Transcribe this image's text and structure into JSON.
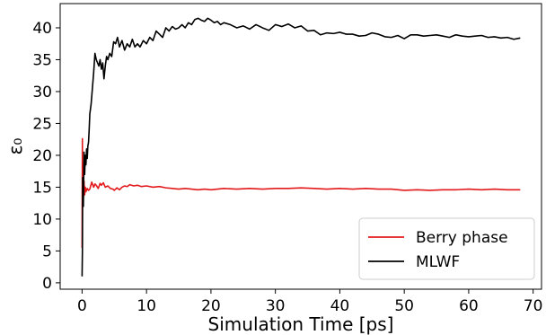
{
  "chart_data": {
    "type": "line",
    "xlabel": "Simulation Time [ps]",
    "ylabel": "ε₀",
    "xlim": [
      -3.4,
      71.3
    ],
    "ylim": [
      -1.0,
      43.8
    ],
    "xticks": [
      0,
      10,
      20,
      30,
      40,
      50,
      60,
      70
    ],
    "yticks": [
      0,
      5,
      10,
      15,
      20,
      25,
      30,
      35,
      40
    ],
    "grid": false,
    "legend_position": "lower-right",
    "series": [
      {
        "name": "Berry phase",
        "color": "#e31a1c",
        "x": [
          0,
          0.05,
          0.1,
          0.15,
          0.2,
          0.3,
          0.4,
          0.5,
          0.6,
          0.8,
          1.0,
          1.2,
          1.5,
          1.8,
          2.0,
          2.2,
          2.5,
          2.8,
          3.0,
          3.3,
          3.6,
          4.0,
          4.4,
          4.8,
          5.0,
          5.4,
          5.8,
          6.2,
          6.6,
          7.0,
          7.4,
          8.0,
          8.6,
          9.2,
          10.0,
          11.0,
          12.0,
          13.0,
          14.0,
          15.0,
          16.0,
          17.0,
          18.0,
          19.0,
          20.0,
          21.0,
          22.0,
          24.0,
          26.0,
          28.0,
          30.0,
          32.0,
          34.0,
          36.0,
          38.0,
          40.0,
          42.0,
          44.0,
          46.0,
          48.0,
          50.0,
          52.0,
          54.0,
          56.0,
          58.0,
          60.0,
          62.0,
          64.0,
          66.0,
          68.0
        ],
        "y": [
          5.5,
          22.6,
          12.0,
          18.5,
          13.5,
          16.0,
          13.8,
          15.0,
          14.3,
          14.8,
          14.5,
          14.7,
          15.8,
          15.0,
          15.5,
          15.3,
          14.8,
          15.6,
          15.3,
          15.7,
          15.0,
          15.2,
          14.8,
          14.7,
          14.5,
          14.9,
          14.6,
          15.0,
          15.2,
          15.1,
          15.4,
          15.2,
          15.3,
          15.1,
          15.2,
          15.0,
          15.1,
          14.9,
          14.8,
          14.7,
          14.8,
          14.7,
          14.6,
          14.7,
          14.6,
          14.7,
          14.8,
          14.7,
          14.8,
          14.7,
          14.8,
          14.8,
          14.9,
          14.8,
          14.7,
          14.8,
          14.7,
          14.8,
          14.7,
          14.7,
          14.5,
          14.6,
          14.5,
          14.6,
          14.6,
          14.7,
          14.6,
          14.7,
          14.6,
          14.6
        ]
      },
      {
        "name": "MLWF",
        "color": "#000000",
        "x": [
          0,
          0.05,
          0.1,
          0.2,
          0.3,
          0.4,
          0.5,
          0.6,
          0.7,
          0.8,
          0.9,
          1.0,
          1.1,
          1.2,
          1.4,
          1.6,
          1.8,
          2.0,
          2.2,
          2.4,
          2.6,
          2.8,
          3.0,
          3.2,
          3.4,
          3.6,
          3.8,
          4.0,
          4.3,
          4.6,
          4.9,
          5.2,
          5.5,
          5.8,
          6.2,
          6.6,
          7.0,
          7.4,
          7.8,
          8.2,
          8.6,
          9.0,
          9.5,
          10.0,
          10.5,
          11.0,
          11.5,
          12.0,
          12.5,
          13.0,
          13.5,
          14.0,
          14.5,
          15.0,
          15.5,
          16.0,
          16.5,
          17.0,
          17.5,
          18.0,
          18.5,
          19.0,
          19.5,
          20.0,
          20.5,
          21.0,
          21.5,
          22.0,
          23.0,
          24.0,
          25.0,
          26.0,
          27.0,
          28.0,
          29.0,
          30.0,
          31.0,
          32.0,
          33.0,
          34.0,
          35.0,
          36.0,
          37.0,
          38.0,
          39.0,
          40.0,
          41.0,
          42.0,
          43.0,
          44.0,
          45.0,
          46.0,
          47.0,
          48.0,
          49.0,
          50.0,
          51.0,
          52.0,
          53.0,
          54.0,
          55.0,
          56.0,
          57.0,
          58.0,
          59.0,
          60.0,
          61.0,
          62.0,
          63.0,
          64.0,
          65.0,
          66.0,
          67.0,
          68.0
        ],
        "y": [
          1.0,
          5.0,
          16.5,
          12.0,
          20.5,
          17.0,
          20.0,
          18.5,
          21.0,
          19.5,
          21.5,
          22.0,
          24.0,
          26.5,
          28.0,
          30.5,
          33.0,
          36.0,
          35.0,
          34.5,
          34.0,
          35.0,
          33.5,
          34.5,
          32.0,
          34.0,
          35.5,
          35.0,
          36.0,
          35.5,
          37.8,
          37.5,
          38.5,
          37.0,
          38.0,
          36.5,
          37.5,
          37.0,
          38.2,
          37.0,
          37.5,
          37.0,
          38.0,
          37.5,
          38.5,
          38.0,
          39.5,
          39.0,
          38.5,
          40.0,
          39.5,
          40.2,
          39.8,
          40.0,
          40.5,
          40.0,
          40.8,
          40.5,
          41.3,
          41.5,
          41.2,
          41.0,
          41.5,
          41.2,
          40.8,
          41.0,
          40.5,
          40.8,
          40.5,
          40.0,
          40.3,
          39.8,
          40.5,
          40.0,
          39.6,
          40.5,
          40.2,
          40.6,
          40.0,
          40.3,
          39.5,
          39.6,
          38.9,
          39.2,
          39.1,
          39.3,
          39.0,
          39.0,
          38.7,
          38.8,
          39.2,
          39.0,
          38.6,
          38.5,
          38.8,
          38.3,
          38.9,
          38.9,
          38.7,
          38.8,
          38.9,
          38.7,
          38.5,
          38.9,
          38.7,
          38.6,
          38.7,
          38.8,
          38.5,
          38.6,
          38.4,
          38.5,
          38.2,
          38.4
        ]
      }
    ]
  }
}
